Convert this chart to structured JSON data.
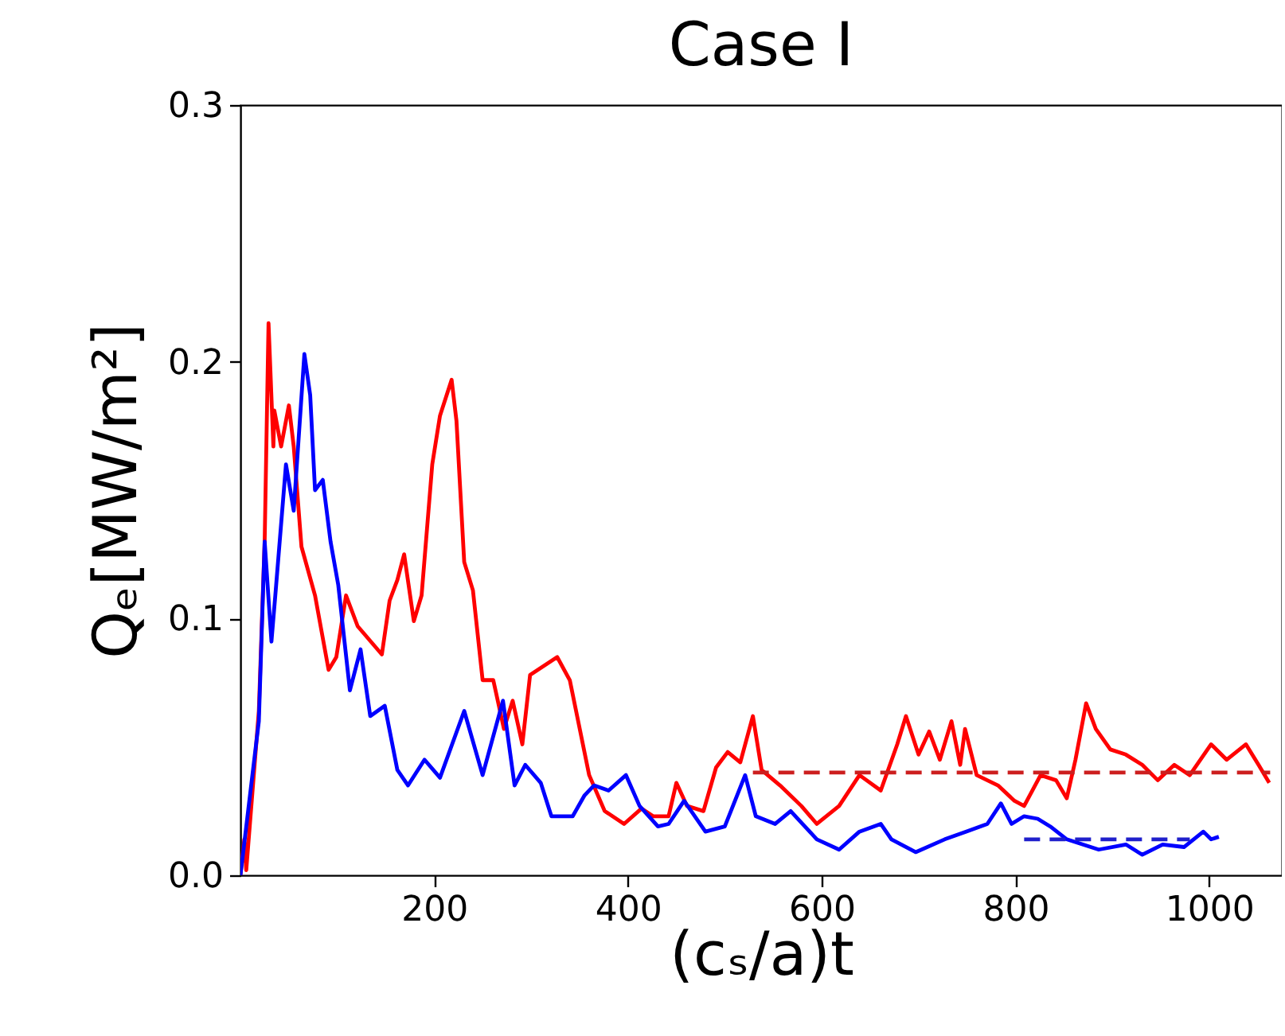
{
  "chart_data": {
    "type": "line",
    "title": "Case I",
    "xlabel": "(cₛ/a)t",
    "ylabel": "Qₑ[MW/m²]",
    "xlim": [
      0,
      1075
    ],
    "xticks": [
      200,
      400,
      600,
      800,
      1000
    ],
    "ylim": [
      0,
      0.3
    ],
    "yticks": [
      {
        "value": 0,
        "label": "0.0"
      },
      0.1,
      0.2,
      0.3
    ],
    "grid": false,
    "marker": "none",
    "series": [
      {
        "color": "#ff0000",
        "line_style": "solid",
        "x": [
          0,
          4,
          6,
          19,
          25,
          29,
          34,
          35,
          42,
          50,
          55,
          63,
          77,
          91,
          99,
          109,
          121,
          146,
          154,
          162,
          169,
          179,
          187,
          198,
          206,
          218,
          223,
          231,
          240,
          250,
          261,
          272,
          281,
          291,
          299,
          327,
          340,
          360,
          376,
          396,
          414,
          426,
          442,
          450,
          461,
          478,
          491,
          503,
          516,
          529,
          538,
          557,
          579,
          595,
          618,
          639,
          661,
          678,
          687,
          700,
          711,
          722,
          734,
          743,
          748,
          760,
          782,
          799,
          809,
          826,
          842,
          853,
          862,
          873,
          883,
          898,
          914,
          931,
          947,
          964,
          980,
          1002,
          1018,
          1038,
          1051,
          1062
        ],
        "values": [
          0,
          0.014,
          0.002,
          0.064,
          0.13,
          0.215,
          0.167,
          0.181,
          0.167,
          0.183,
          0.167,
          0.128,
          0.109,
          0.08,
          0.085,
          0.109,
          0.097,
          0.086,
          0.107,
          0.115,
          0.125,
          0.099,
          0.109,
          0.16,
          0.179,
          0.193,
          0.177,
          0.122,
          0.111,
          0.076,
          0.076,
          0.057,
          0.068,
          0.051,
          0.078,
          0.085,
          0.076,
          0.039,
          0.025,
          0.02,
          0.026,
          0.023,
          0.023,
          0.036,
          0.027,
          0.025,
          0.042,
          0.048,
          0.044,
          0.062,
          0.041,
          0.035,
          0.027,
          0.02,
          0.027,
          0.039,
          0.033,
          0.051,
          0.062,
          0.047,
          0.056,
          0.045,
          0.06,
          0.043,
          0.057,
          0.039,
          0.035,
          0.029,
          0.027,
          0.039,
          0.037,
          0.03,
          0.045,
          0.067,
          0.057,
          0.049,
          0.047,
          0.043,
          0.037,
          0.043,
          0.039,
          0.051,
          0.045,
          0.051,
          0.043,
          0.036
        ]
      },
      {
        "color": "#0000ff",
        "line_style": "solid",
        "x": [
          0,
          19,
          25,
          32,
          36,
          47,
          55,
          66,
          72,
          77,
          85,
          93,
          101,
          113,
          124,
          134,
          149,
          162,
          173,
          190,
          206,
          231,
          250,
          271,
          283,
          294,
          310,
          321,
          343,
          355,
          365,
          380,
          398,
          412,
          431,
          442,
          458,
          480,
          500,
          521,
          532,
          552,
          568,
          595,
          618,
          639,
          661,
          672,
          697,
          727,
          749,
          771,
          785,
          796,
          809,
          823,
          836,
          853,
          886,
          914,
          931,
          952,
          974,
          994,
          1002,
          1010
        ],
        "values": [
          0,
          0.06,
          0.13,
          0.091,
          0.109,
          0.16,
          0.142,
          0.203,
          0.187,
          0.15,
          0.154,
          0.13,
          0.113,
          0.072,
          0.088,
          0.062,
          0.066,
          0.041,
          0.035,
          0.045,
          0.038,
          0.064,
          0.039,
          0.068,
          0.035,
          0.043,
          0.036,
          0.023,
          0.023,
          0.031,
          0.035,
          0.033,
          0.039,
          0.027,
          0.019,
          0.02,
          0.029,
          0.017,
          0.019,
          0.039,
          0.023,
          0.02,
          0.025,
          0.014,
          0.01,
          0.017,
          0.02,
          0.014,
          0.009,
          0.014,
          0.017,
          0.02,
          0.028,
          0.02,
          0.023,
          0.022,
          0.019,
          0.014,
          0.01,
          0.012,
          0.008,
          0.012,
          0.011,
          0.017,
          0.014,
          0.015
        ]
      },
      {
        "color": "#cc1f1f",
        "line_style": "dashed",
        "x": [
          529,
          1063
        ],
        "values": [
          0.04,
          0.04
        ]
      },
      {
        "color": "#1f1fcc",
        "line_style": "dashed",
        "x": [
          809,
          980
        ],
        "values": [
          0.014,
          0.014
        ]
      }
    ]
  }
}
